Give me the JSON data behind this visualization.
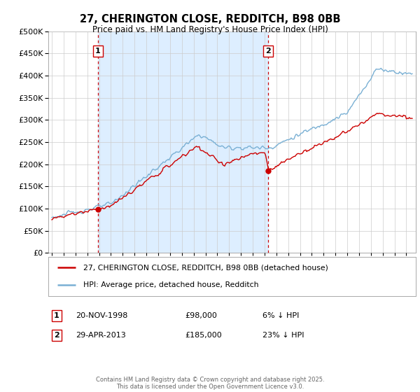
{
  "title": "27, CHERINGTON CLOSE, REDDITCH, B98 0BB",
  "subtitle": "Price paid vs. HM Land Registry's House Price Index (HPI)",
  "ylim": [
    0,
    500000
  ],
  "yticks": [
    0,
    50000,
    100000,
    150000,
    200000,
    250000,
    300000,
    350000,
    400000,
    450000,
    500000
  ],
  "legend_line1": "27, CHERINGTON CLOSE, REDDITCH, B98 0BB (detached house)",
  "legend_line2": "HPI: Average price, detached house, Redditch",
  "annotation1_label": "1",
  "annotation1_date": "20-NOV-1998",
  "annotation1_price": "£98,000",
  "annotation1_pct": "6% ↓ HPI",
  "annotation1_year": 1998.88,
  "annotation1_value": 98000,
  "annotation2_label": "2",
  "annotation2_date": "29-APR-2013",
  "annotation2_price": "£185,000",
  "annotation2_pct": "23% ↓ HPI",
  "annotation2_year": 2013.32,
  "annotation2_value": 185000,
  "red_color": "#cc0000",
  "blue_color": "#7ab0d4",
  "fill_color": "#ddeeff",
  "vline_color": "#cc0000",
  "grid_color": "#cccccc",
  "bg_color": "#ffffff",
  "footer": "Contains HM Land Registry data © Crown copyright and database right 2025.\nThis data is licensed under the Open Government Licence v3.0.",
  "sale1_year": 1998.88,
  "sale1_price": 98000,
  "sale2_year": 2013.32,
  "sale2_price": 185000,
  "xlim_left": 1994.7,
  "xlim_right": 2025.8
}
